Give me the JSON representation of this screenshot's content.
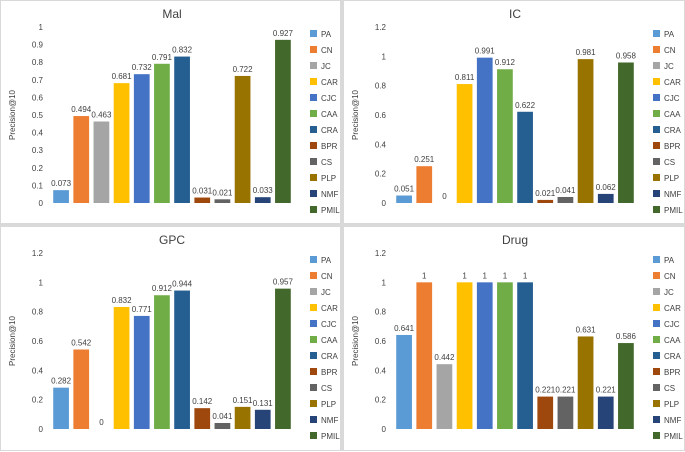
{
  "colors": {
    "PA": "#5b9bd5",
    "CN": "#ed7d31",
    "JC": "#a5a5a5",
    "CAR": "#ffc000",
    "CJC": "#4472c4",
    "CAA": "#70ad47",
    "CRA": "#255e91",
    "BPR": "#9e480e",
    "CS": "#636363",
    "PLP": "#997300",
    "NMF": "#264478",
    "PMIL": "#43682b"
  },
  "chart_data": [
    {
      "type": "bar",
      "title": "Mal",
      "ylabel": "Precision@10",
      "ylim": [
        0,
        1
      ],
      "yticks": [
        "0",
        "0.1",
        "0.2",
        "0.3",
        "0.4",
        "0.5",
        "0.6",
        "0.7",
        "0.8",
        "0.9",
        "1"
      ],
      "categories": [
        "PA",
        "CN",
        "JC",
        "CAR",
        "CJC",
        "CAA",
        "CRA",
        "BPR",
        "CS",
        "PLP",
        "NMF",
        "PMIL"
      ],
      "values": [
        0.073,
        0.494,
        0.463,
        0.681,
        0.732,
        0.791,
        0.832,
        0.031,
        0.021,
        0.722,
        0.033,
        0.927
      ],
      "labels": [
        "0.073",
        "0.494",
        "0.463",
        "0.681",
        "0.732",
        "0.791",
        "0.832",
        "0.031",
        "0.021",
        "0.722",
        "0.033",
        "0.927"
      ],
      "legend": [
        "PA",
        "CN",
        "JC",
        "CAR",
        "CJC",
        "CAA",
        "CRA",
        "BPR",
        "CS",
        "PLP",
        "NMF",
        "PMIL"
      ]
    },
    {
      "type": "bar",
      "title": "IC",
      "ylabel": "Precision@10",
      "ylim": [
        0,
        1.2
      ],
      "yticks": [
        "0",
        "0.2",
        "0.4",
        "0.6",
        "0.8",
        "1",
        "1.2"
      ],
      "categories": [
        "PA",
        "CN",
        "JC",
        "CAR",
        "CJC",
        "CAA",
        "CRA",
        "BPR",
        "CS",
        "PLP",
        "NMF",
        "PMIL"
      ],
      "values": [
        0.051,
        0.251,
        0,
        0.811,
        0.991,
        0.912,
        0.622,
        0.021,
        0.041,
        0.981,
        0.062,
        0.958
      ],
      "labels": [
        "0.051",
        "0.251",
        "0",
        "0.811",
        "0.991",
        "0.912",
        "0.622",
        "0.021",
        "0.041",
        "0.981",
        "0.062",
        "0.958"
      ],
      "legend": [
        "PA",
        "CN",
        "JC",
        "CAR",
        "CJC",
        "CAA",
        "CRA",
        "BPR",
        "CS",
        "PLP",
        "NMF",
        "PMIL"
      ]
    },
    {
      "type": "bar",
      "title": "GPC",
      "ylabel": "Precision@10",
      "ylim": [
        0,
        1.2
      ],
      "yticks": [
        "0",
        "0.2",
        "0.4",
        "0.6",
        "0.8",
        "1",
        "1.2"
      ],
      "categories": [
        "PA",
        "CN",
        "JC",
        "CAR",
        "CJC",
        "CAA",
        "CRA",
        "BPR",
        "CS",
        "PLP",
        "NMF",
        "PMIL"
      ],
      "values": [
        0.282,
        0.542,
        0,
        0.832,
        0.771,
        0.912,
        0.944,
        0.142,
        0.041,
        0.151,
        0.131,
        0.957
      ],
      "labels": [
        "0.282",
        "0.542",
        "0",
        "0.832",
        "0.771",
        "0.912",
        "0.944",
        "0.142",
        "0.041",
        "0.151",
        "0.131",
        "0.957"
      ],
      "legend": [
        "PA",
        "CN",
        "JC",
        "CAR",
        "CJC",
        "CAA",
        "CRA",
        "BPR",
        "CS",
        "PLP",
        "NMF",
        "PMIL"
      ]
    },
    {
      "type": "bar",
      "title": "Drug",
      "ylabel": "Precision@10",
      "ylim": [
        0,
        1.2
      ],
      "yticks": [
        "0",
        "0.2",
        "0.4",
        "0.6",
        "0.8",
        "1",
        "1.2"
      ],
      "categories": [
        "PA",
        "CN",
        "JC",
        "CAR",
        "CJC",
        "CAA",
        "CRA",
        "BPR",
        "CS",
        "PLP",
        "NMF",
        "PMIL"
      ],
      "values": [
        0.641,
        1,
        0.442,
        1,
        1,
        1,
        1,
        0.221,
        0.221,
        0.631,
        0.221,
        0.586
      ],
      "labels": [
        "0.641",
        "1",
        "0.442",
        "1",
        "1",
        "1",
        "1",
        "0.221",
        "0.221",
        "0.631",
        "0.221",
        "0.586"
      ],
      "legend": [
        "PA",
        "CN",
        "JC",
        "CAR",
        "CJC",
        "CAA",
        "CRA",
        "BPR",
        "CS",
        "PLP",
        "NMF",
        "PMIL"
      ]
    }
  ]
}
